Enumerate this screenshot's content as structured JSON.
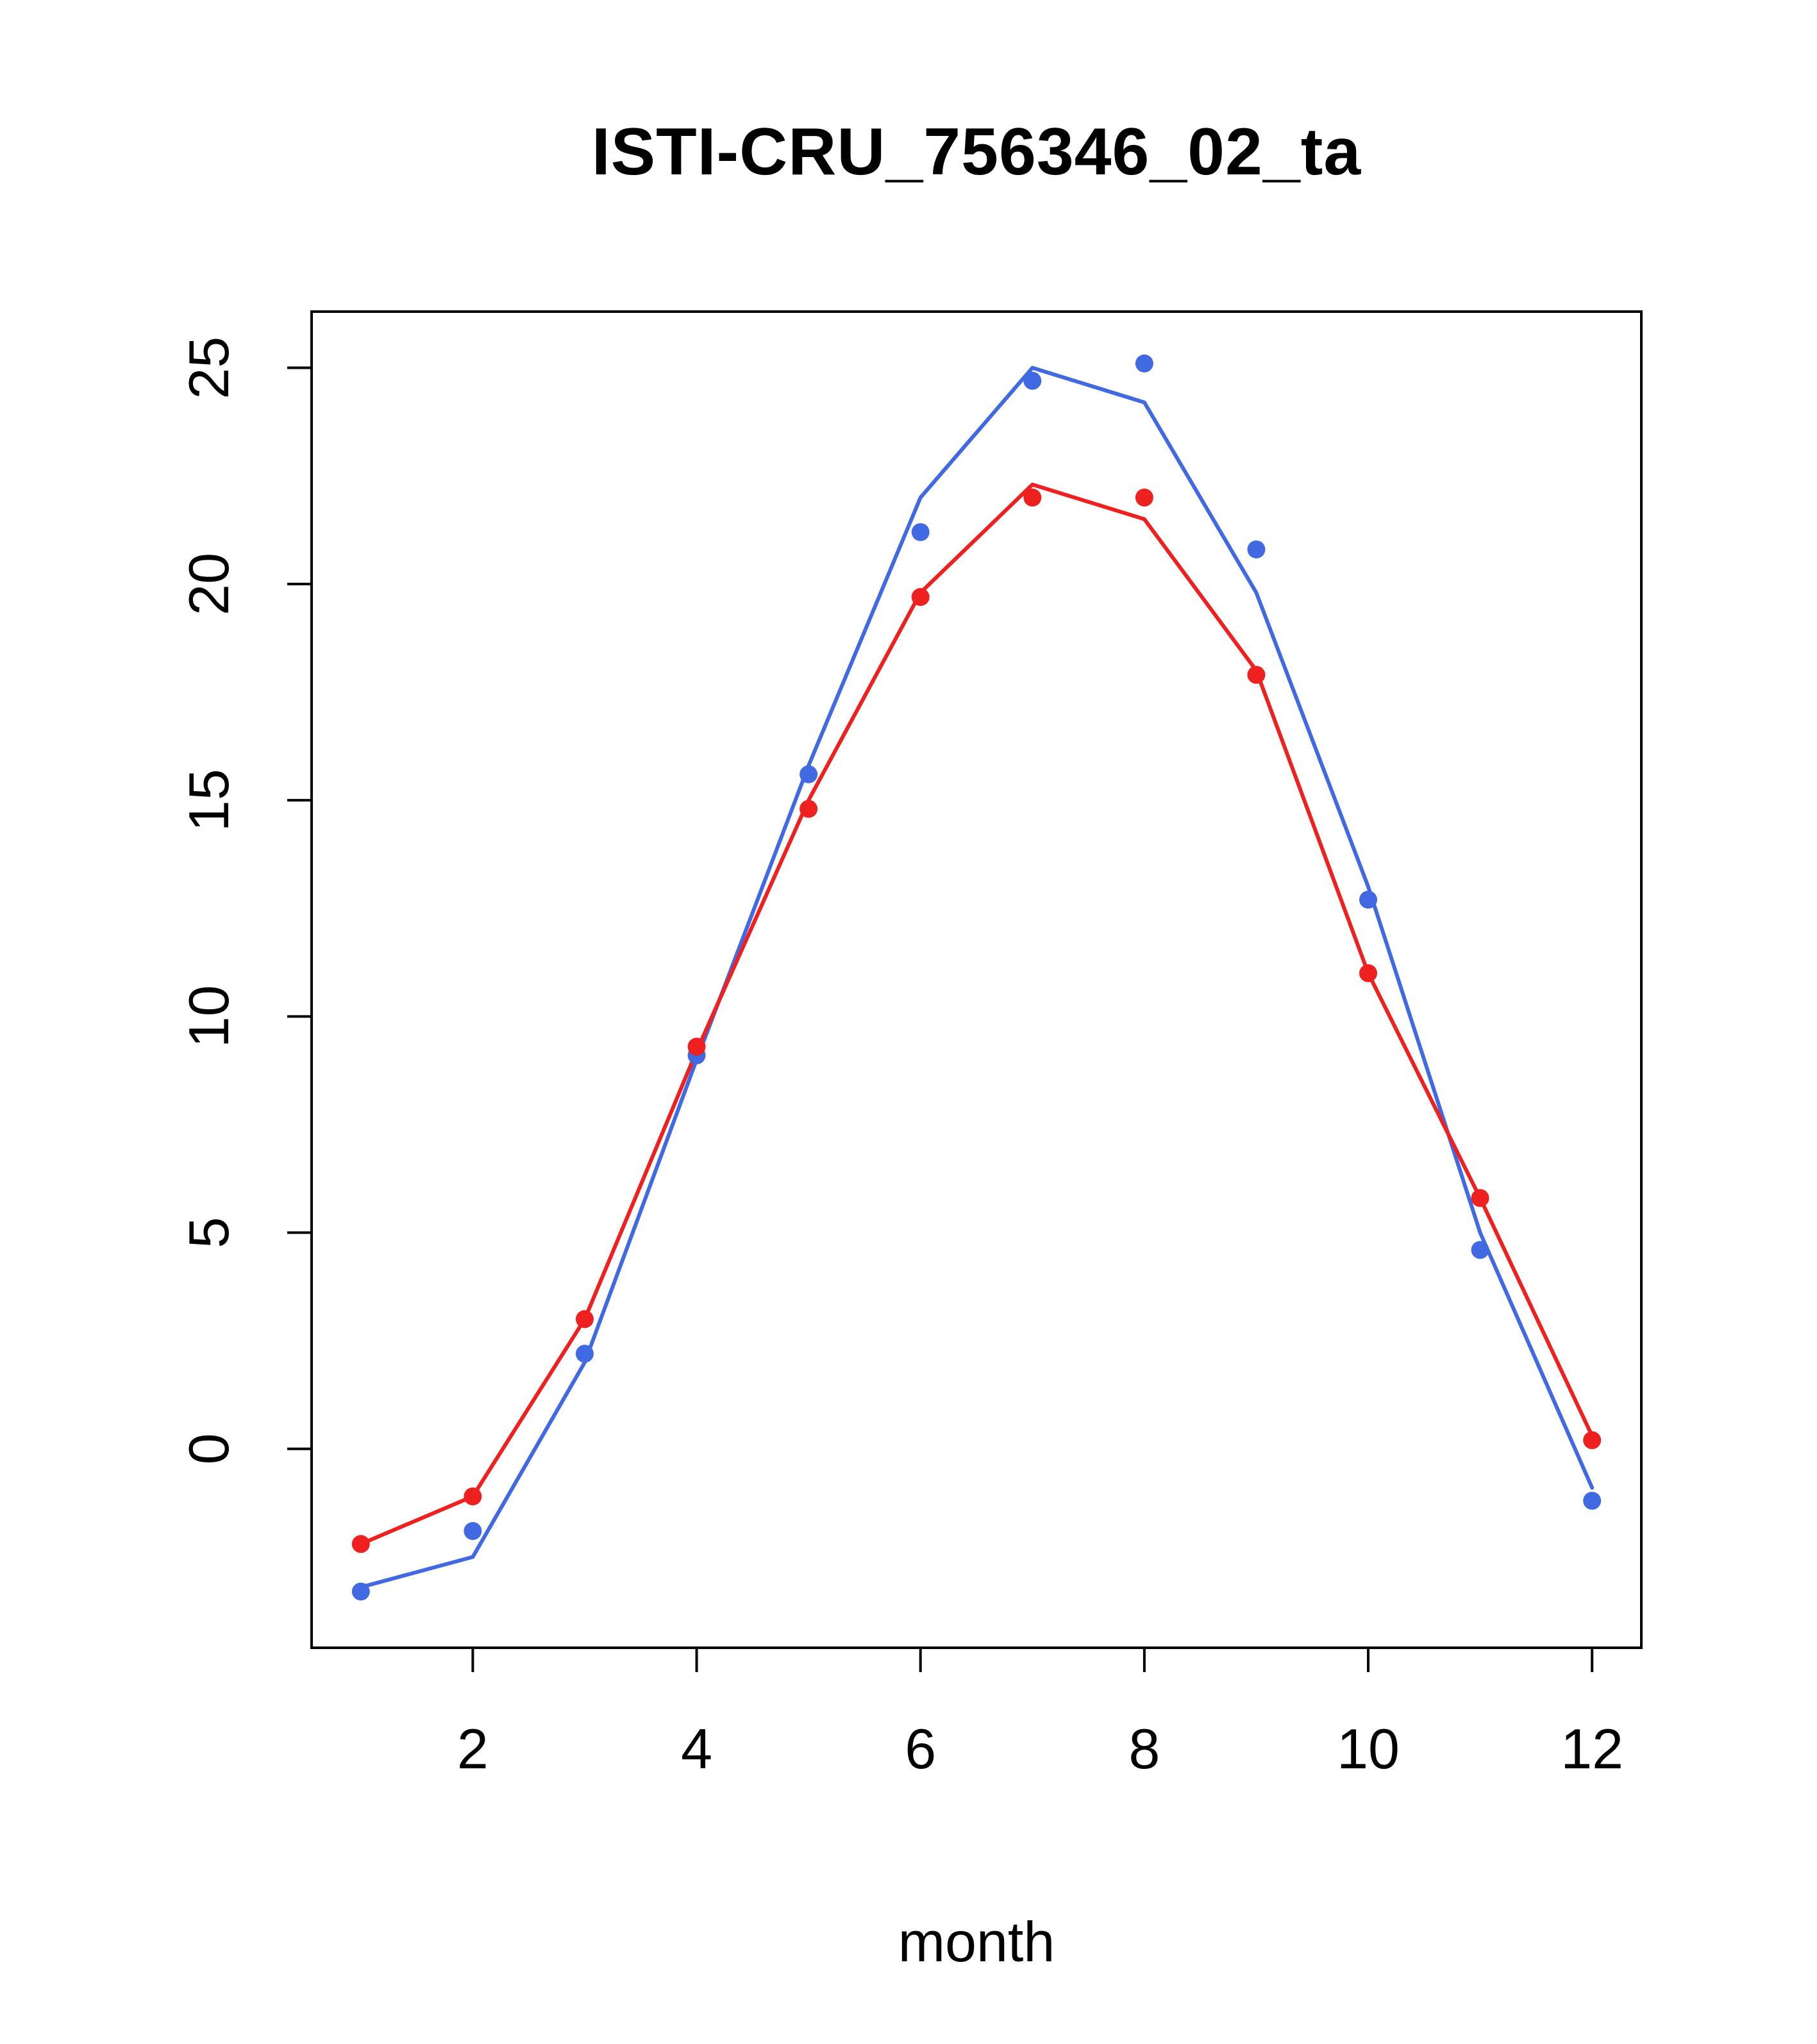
{
  "chart_data": {
    "type": "line",
    "title": "ISTI-CRU_756346_02_ta",
    "xlabel": "month",
    "ylabel": "",
    "x": [
      1,
      2,
      3,
      4,
      5,
      6,
      7,
      8,
      9,
      10,
      11,
      12
    ],
    "xticks": [
      2,
      4,
      6,
      8,
      10,
      12
    ],
    "yticks": [
      0,
      5,
      10,
      15,
      20,
      25
    ],
    "xlim": [
      0.56,
      12.44
    ],
    "ylim": [
      -4.6,
      26.3
    ],
    "grid": false,
    "legend": "none",
    "series": [
      {
        "name": "blue-series",
        "color": "#4169e1",
        "line": [
          -3.2,
          -2.5,
          2.0,
          9.0,
          15.8,
          22.0,
          25.0,
          24.2,
          19.8,
          13.0,
          5.0,
          -0.9
        ],
        "points": [
          -3.3,
          -1.9,
          2.2,
          9.1,
          15.6,
          21.2,
          24.7,
          25.1,
          20.8,
          12.7,
          4.6,
          -1.2
        ]
      },
      {
        "name": "red-series",
        "color": "#ee2020",
        "line": [
          -2.2,
          -1.1,
          3.0,
          9.2,
          15.0,
          19.8,
          22.3,
          21.5,
          18.0,
          11.0,
          5.8,
          0.3
        ],
        "points": [
          -2.2,
          -1.1,
          3.0,
          9.3,
          14.8,
          19.7,
          22.0,
          22.0,
          17.9,
          11.0,
          5.8,
          0.2
        ]
      }
    ]
  }
}
